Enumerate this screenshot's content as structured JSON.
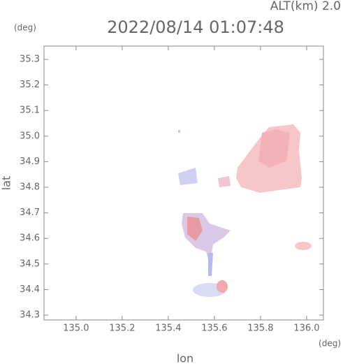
{
  "chart_data": {
    "type": "map",
    "title": "2022/08/14 01:07:48",
    "altitude_label": "ALT(km) 2.0",
    "x_label": "lon",
    "x_unit": "(deg)",
    "y_label": "lat",
    "y_unit": "(deg)",
    "xlim": [
      134.861,
      136.073
    ],
    "ylim": [
      34.281,
      35.352
    ],
    "xticks": [
      {
        "value": 135.0,
        "label": "135.0"
      },
      135.2,
      135.4,
      135.6,
      135.8,
      {
        "value": 136.0,
        "label": "136.0"
      }
    ],
    "yticks": [
      34.3,
      34.4,
      34.5,
      34.6,
      34.7,
      34.8,
      34.9,
      {
        "value": 35.0,
        "label": "35.0"
      },
      35.1,
      35.2,
      35.3
    ],
    "axis_color": "#888888"
  }
}
